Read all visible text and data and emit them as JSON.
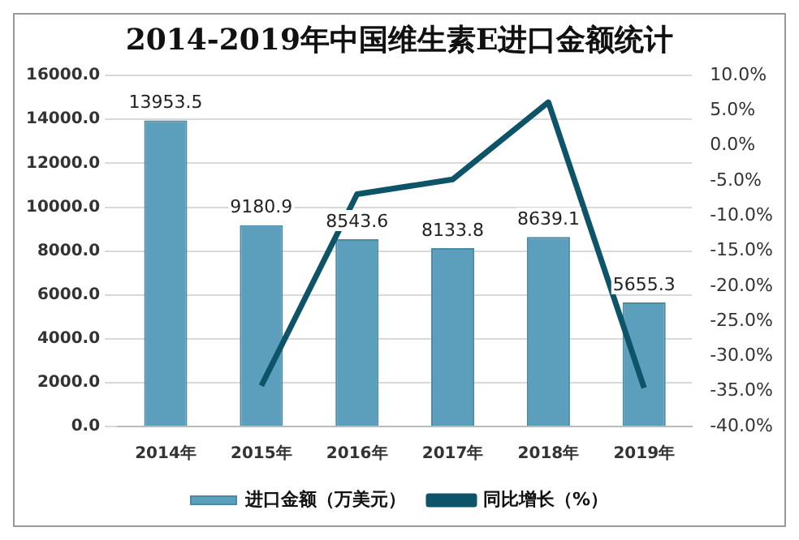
{
  "chart_data": {
    "type": "bar",
    "title": "2014-2019年中国维生素E进口金额统计",
    "categories": [
      "2014年",
      "2015年",
      "2016年",
      "2017年",
      "2018年",
      "2019年"
    ],
    "series": [
      {
        "name": "进口金额（万美元）",
        "color": "#5b9fbd",
        "values": [
          13953.5,
          9180.9,
          8543.6,
          8133.8,
          8639.1,
          5655.3
        ],
        "value_labels": [
          "13953.5",
          "9180.9",
          "8543.6",
          "8133.8",
          "8639.1",
          "5655.3"
        ]
      },
      {
        "name": "同比增长（%）",
        "type": "line",
        "axis": "y2",
        "color": "#0d5468",
        "values": [
          null,
          -34.2,
          -6.9,
          -4.8,
          6.2,
          -34.5
        ]
      }
    ],
    "ylim": [
      0,
      16000
    ],
    "yticks": [
      {
        "value": 0,
        "label": "0.0"
      },
      {
        "value": 2000,
        "label": "2000.0"
      },
      {
        "value": 4000,
        "label": "4000.0"
      },
      {
        "value": 6000,
        "label": "6000.0"
      },
      {
        "value": 8000,
        "label": "8000.0"
      },
      {
        "value": 10000,
        "label": "10000.0"
      },
      {
        "value": 12000,
        "label": "12000.0"
      },
      {
        "value": 14000,
        "label": "14000.0"
      },
      {
        "value": 16000,
        "label": "16000.0"
      }
    ],
    "y2lim": [
      -40,
      10
    ],
    "y2ticks": [
      {
        "value": -40,
        "label": "-40.0%"
      },
      {
        "value": -35,
        "label": "-35.0%"
      },
      {
        "value": -30,
        "label": "-30.0%"
      },
      {
        "value": -25,
        "label": "-25.0%"
      },
      {
        "value": -20,
        "label": "-20.0%"
      },
      {
        "value": -15,
        "label": "-15.0%"
      },
      {
        "value": -10,
        "label": "-10.0%"
      },
      {
        "value": -5,
        "label": "-5.0%"
      },
      {
        "value": 0,
        "label": "0.0%"
      },
      {
        "value": 5,
        "label": "5.0%"
      },
      {
        "value": 10,
        "label": "10.0%"
      }
    ],
    "grid": "y",
    "legend": "bottom",
    "marker": "none",
    "line_style": "solid"
  }
}
